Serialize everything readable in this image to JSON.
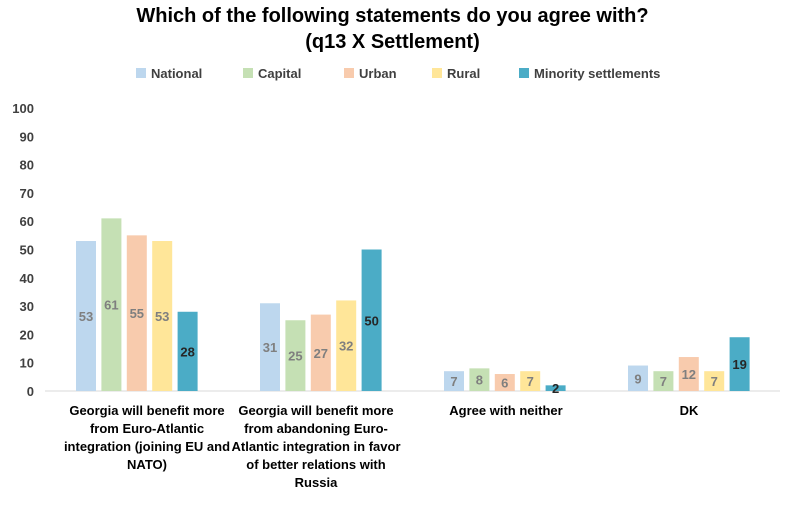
{
  "chart_data": {
    "type": "bar",
    "title": "Which of the following statements do you agree with?",
    "subtitle": "(q13 X Settlement)",
    "categories": [
      "Georgia will benefit more from Euro-Atlantic integration (joining EU and NATO)",
      "Georgia will benefit more from abandoning Euro-Atlantic integration in favor of better relations with Russia",
      "Agree with neither",
      "DK"
    ],
    "series": [
      {
        "name": "National",
        "color": "#BDD7EE",
        "label_color": "#7F7F7F",
        "values": [
          53,
          31,
          7,
          9
        ]
      },
      {
        "name": "Capital",
        "color": "#C5E0B4",
        "label_color": "#7F7F7F",
        "values": [
          61,
          25,
          8,
          7
        ]
      },
      {
        "name": "Urban",
        "color": "#F8CBAD",
        "label_color": "#7F7F7F",
        "values": [
          55,
          27,
          6,
          12
        ]
      },
      {
        "name": "Rural",
        "color": "#FFE699",
        "label_color": "#7F7F7F",
        "values": [
          53,
          32,
          7,
          7
        ]
      },
      {
        "name": "Minority settlements",
        "color": "#4BACC6",
        "label_color": "#262626",
        "values": [
          28,
          50,
          2,
          19
        ]
      }
    ],
    "ylim": [
      0,
      100
    ],
    "yticks": [
      "0",
      "10",
      "20",
      "30",
      "40",
      "50",
      "60",
      "70",
      "80",
      "90",
      "100"
    ],
    "xlabel": "",
    "ylabel": "",
    "grid": false,
    "legend_position": "top"
  }
}
